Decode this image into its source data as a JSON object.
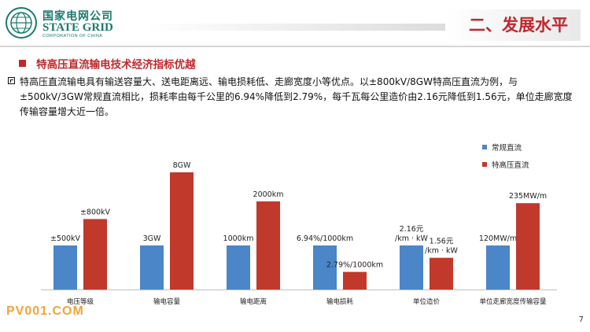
{
  "logo": {
    "name_cn": "国家电网公司",
    "name_en": "STATE GRID",
    "name_en_sub": "CORPORATION OF CHINA",
    "icon": "state-grid-globe-icon"
  },
  "section_title": "二、发展水平",
  "sub_heading": "特高压直流输电技术经济指标优越",
  "bullet_text": "特高压直流输电具有输送容量大、送电距离远、输电损耗低、走廊宽度小等优点。以±800kV/8GW特高压直流为例，与±500kV/3GW常规直流相比，损耗率由每千公里的6.94%降低到2.79%，每千瓦每公里造价由2.16元降低到1.56元，单位走廊宽度传输容量增大近一倍。",
  "watermark": "PV001.COM",
  "page_number": "7",
  "colors": {
    "accent": "#c0282c",
    "brand": "#1b7a6e",
    "series_conventional": "#4a86c8",
    "series_uhv": "#c0392b"
  },
  "chart_data": {
    "type": "bar",
    "normalized": true,
    "categories": [
      "电压等级",
      "输电容量",
      "输电距离",
      "输电损耗",
      "单位造价",
      "单位走廊宽度传输容量"
    ],
    "series": [
      {
        "name": "常规直流",
        "values": [
          0.5,
          0.5,
          0.5,
          0.5,
          0.5,
          0.5
        ],
        "labels": [
          "±500kV",
          "3GW",
          "1000km",
          "6.94%/1000km",
          "2.16元\n/km · kW",
          "120MW/m"
        ]
      },
      {
        "name": "特高压直流",
        "values": [
          0.8,
          1.33,
          1.0,
          0.2,
          0.36,
          0.98
        ],
        "labels": [
          "±800kV",
          "8GW",
          "2000km",
          "2.79%/1000km",
          "1.56元\n/km · kW",
          "235MW/m"
        ]
      }
    ],
    "legend_position": "top-right",
    "grid": false
  }
}
